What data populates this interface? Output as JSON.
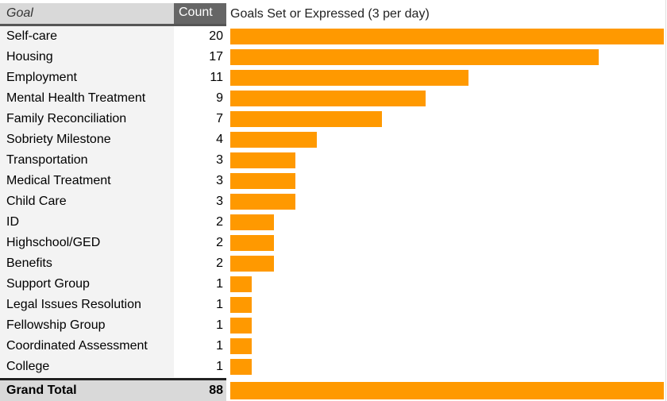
{
  "headers": {
    "goal": "Goal",
    "count": "Count",
    "chart_title": "Goals Set or Expressed (3 per day)"
  },
  "total": {
    "label": "Grand Total",
    "value": 88
  },
  "colors": {
    "bar": "#ff9900",
    "header_dark": "#666666",
    "header_light": "#d9d9d9",
    "label_bg": "#f3f3f3"
  },
  "chart_data": {
    "type": "bar",
    "orientation": "horizontal",
    "title": "Goals Set or Expressed (3 per day)",
    "xlabel": "",
    "ylabel": "",
    "grid": false,
    "categories": [
      "Self-care",
      "Housing",
      "Employment",
      "Mental Health Treatment",
      "Family Reconciliation",
      "Sobriety Milestone",
      "Transportation",
      "Medical Treatment",
      "Child Care",
      "ID",
      "Highschool/GED",
      "Benefits",
      "Support Group",
      "Legal Issues Resolution",
      "Fellowship Group",
      "Coordinated Assessment",
      "College"
    ],
    "values": [
      20,
      17,
      11,
      9,
      7,
      4,
      3,
      3,
      3,
      2,
      2,
      2,
      1,
      1,
      1,
      1,
      1
    ],
    "total": 88
  }
}
